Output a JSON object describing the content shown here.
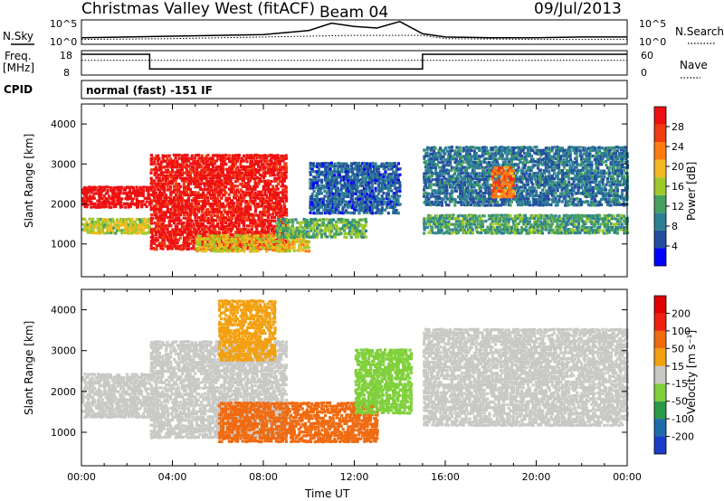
{
  "header": {
    "station": "Christmas Valley West (fitACF)",
    "beam": "Beam 04",
    "date": "09/Jul/2013"
  },
  "panels": {
    "nsky_label": "N.Sky",
    "nsearch_label": "N.Search",
    "freq_label_line1": "Freq.",
    "freq_label_line2": "[MHz]",
    "nave_label": "Nave",
    "cpid_label": "CPID",
    "cpid_text": "normal (fast) -151 IF",
    "noise_left_ticks": [
      "10^5",
      "10^0"
    ],
    "noise_right_ticks": [
      "10^5",
      "10^0"
    ],
    "freq_ticks": [
      "18",
      "8"
    ],
    "nave_ticks": [
      "60",
      "0"
    ]
  },
  "chart_data": [
    {
      "type": "line",
      "name": "noise",
      "x_ticks": [
        "00:00",
        "04:00",
        "08:00",
        "12:00",
        "16:00",
        "20:00",
        "00:00"
      ],
      "series": [
        {
          "name": "N.Sky",
          "x": [
            0,
            2,
            4,
            6,
            8,
            10,
            11,
            12,
            13,
            14,
            15,
            16,
            18,
            20,
            22,
            24
          ],
          "y": [
            0.8,
            0.9,
            1.0,
            1.1,
            1.2,
            1.7,
            2.6,
            2.2,
            2.0,
            2.8,
            1.3,
            0.9,
            0.8,
            0.8,
            0.9,
            0.9
          ]
        },
        {
          "name": "N.Search",
          "x": [
            0,
            4,
            8,
            12,
            15,
            16,
            20,
            24
          ],
          "y": [
            0.6,
            0.7,
            0.9,
            1.1,
            1.1,
            0.7,
            0.6,
            0.6
          ]
        }
      ]
    },
    {
      "type": "line",
      "name": "frequency-nave",
      "series": [
        {
          "name": "Freq.",
          "x": [
            0,
            3,
            3,
            15,
            15,
            24
          ],
          "y": [
            16.5,
            16.5,
            10.5,
            10.5,
            16.5,
            16.5
          ]
        },
        {
          "name": "Nave",
          "x": [
            0,
            24
          ],
          "y": [
            36,
            36
          ]
        }
      ],
      "ylim_freq": [
        8,
        18
      ],
      "ylim_nave": [
        0,
        60
      ]
    },
    {
      "type": "heatmap",
      "name": "power",
      "xlabel": "",
      "ylabel": "Slant Range [km]",
      "xlim_hours": [
        0,
        24
      ],
      "ylim_km": [
        180,
        4500
      ],
      "y_ticks": [
        1000,
        2000,
        3000,
        4000
      ],
      "colorbar_label": "Power [dB]",
      "colorbar_ticks": [
        "28",
        "24",
        "20",
        "16",
        "12",
        "8",
        "4"
      ],
      "colorbar_colors": [
        "#0000ff",
        "#234ea0",
        "#2d7f93",
        "#46a060",
        "#9fc82a",
        "#f2b91e",
        "#ff7a10",
        "#f03a10",
        "#ee1010"
      ],
      "bands": [
        {
          "t0": 0.0,
          "t1": 3.0,
          "r0": 1950,
          "r1": 2500,
          "value": 30
        },
        {
          "t0": 0.0,
          "t1": 3.0,
          "r0": 1300,
          "r1": 1700,
          "value": 17
        },
        {
          "t0": 3.0,
          "t1": 9.0,
          "r0": 900,
          "r1": 3300,
          "value": 27
        },
        {
          "t0": 5.0,
          "t1": 10.0,
          "r0": 850,
          "r1": 1300,
          "value": 18
        },
        {
          "t0": 8.5,
          "t1": 12.5,
          "r0": 1200,
          "r1": 1700,
          "value": 14
        },
        {
          "t0": 10.0,
          "t1": 14.0,
          "r0": 1800,
          "r1": 3100,
          "value": 9
        },
        {
          "t0": 15.0,
          "t1": 24.0,
          "r0": 1300,
          "r1": 1800,
          "value": 13
        },
        {
          "t0": 15.0,
          "t1": 24.0,
          "r0": 2000,
          "r1": 3500,
          "value": 10
        },
        {
          "t0": 18.0,
          "t1": 19.0,
          "r0": 2200,
          "r1": 3000,
          "value": 22
        }
      ]
    },
    {
      "type": "heatmap",
      "name": "velocity",
      "xlabel": "Time UT",
      "ylabel": "Slant Range [km]",
      "x_ticks": [
        "00:00",
        "04:00",
        "08:00",
        "12:00",
        "16:00",
        "20:00",
        "00:00"
      ],
      "xlim_hours": [
        0,
        24
      ],
      "ylim_km": [
        180,
        4500
      ],
      "y_ticks": [
        1000,
        2000,
        3000,
        4000
      ],
      "colorbar_label": "Velocity [m s⁻¹]",
      "colorbar_ticks": [
        "200",
        "100",
        "50",
        "15",
        "-15",
        "-50",
        "-100",
        "-200"
      ],
      "colorbar_colors": [
        "#1a3cc8",
        "#1f6aa8",
        "#2a9a4a",
        "#7fd03a",
        "#c8c8c4",
        "#f2a010",
        "#f06a10",
        "#ee2010",
        "#e00000"
      ],
      "bands": [
        {
          "t0": 0.0,
          "t1": 3.0,
          "r0": 1400,
          "r1": 2500,
          "value": 0
        },
        {
          "t0": 3.0,
          "t1": 9.0,
          "r0": 900,
          "r1": 3300,
          "value": 0
        },
        {
          "t0": 6.0,
          "t1": 8.5,
          "r0": 2800,
          "r1": 4300,
          "value": -60
        },
        {
          "t0": 6.0,
          "t1": 13.0,
          "r0": 800,
          "r1": 1800,
          "value": -80
        },
        {
          "t0": 12.0,
          "t1": 14.5,
          "r0": 1500,
          "r1": 3100,
          "value": 30
        },
        {
          "t0": 15.0,
          "t1": 24.0,
          "r0": 1200,
          "r1": 3600,
          "value": 0
        }
      ]
    }
  ]
}
